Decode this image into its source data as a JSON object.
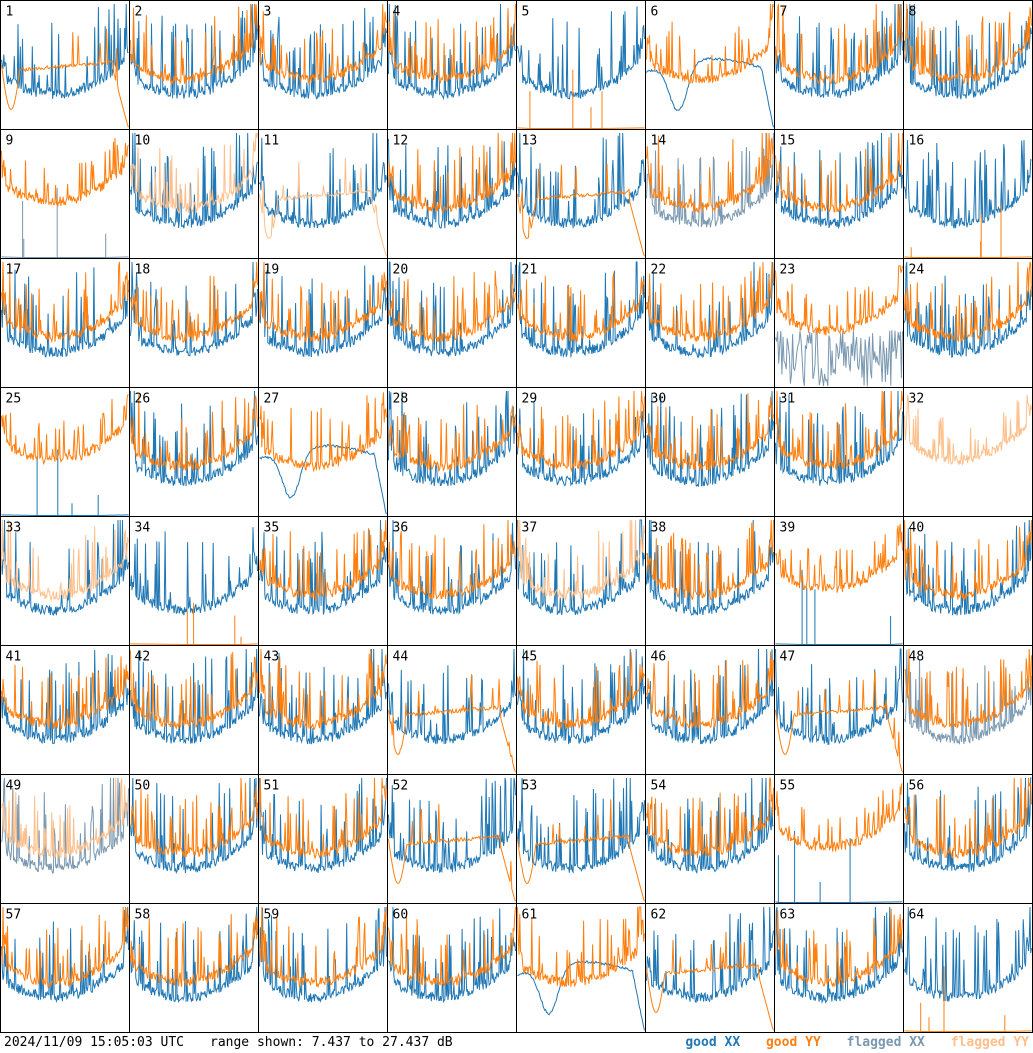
{
  "chart_data": {
    "type": "line",
    "title": "",
    "xlabel": "",
    "ylabel": "",
    "panel_count": 64,
    "columns": 8,
    "rows": 8,
    "panel_labels": [
      "1",
      "2",
      "3",
      "4",
      "5",
      "6",
      "7",
      "8",
      "9",
      "10",
      "11",
      "12",
      "13",
      "14",
      "15",
      "16",
      "17",
      "18",
      "19",
      "20",
      "21",
      "22",
      "23",
      "24",
      "25",
      "26",
      "27",
      "28",
      "29",
      "30",
      "31",
      "32",
      "33",
      "34",
      "35",
      "36",
      "37",
      "38",
      "39",
      "40",
      "41",
      "42",
      "43",
      "44",
      "45",
      "46",
      "47",
      "48",
      "49",
      "50",
      "51",
      "52",
      "53",
      "54",
      "55",
      "56",
      "57",
      "58",
      "59",
      "60",
      "61",
      "62",
      "63",
      "64"
    ],
    "ylim": [
      7.437,
      27.437
    ],
    "ylim_units": "dB",
    "series_styles": {
      "good_xx": "#1f77b4",
      "good_yy": "#ff7f0e",
      "flagged_xx": "#7a98b0",
      "flagged_yy": "#ffbf8a"
    },
    "panels": {
      "1": {
        "xx": "a",
        "yy": "drop"
      },
      "2": {
        "xx": "a",
        "yy": "a"
      },
      "3": {
        "xx": "a",
        "yy": "a"
      },
      "4": {
        "xx": "a",
        "yy": "a"
      },
      "5": {
        "xx": "a",
        "yy": "dead"
      },
      "6": {
        "xx": "dip",
        "yy": "a"
      },
      "7": {
        "xx": "a",
        "yy": "a"
      },
      "8": {
        "xx": "a",
        "yy": "a"
      },
      "9": {
        "xx": "dead",
        "yy": "flat",
        "xx_flag": true
      },
      "10": {
        "xx": "a",
        "yy": "a",
        "yy_flag": true
      },
      "11": {
        "xx": "a",
        "yy": "drop",
        "yy_flag": true
      },
      "12": {
        "xx": "a",
        "yy": "a"
      },
      "13": {
        "xx": "a",
        "yy": "drop"
      },
      "14": {
        "xx": "a",
        "yy": "a",
        "xx_flag": true
      },
      "15": {
        "xx": "a",
        "yy": "a"
      },
      "16": {
        "xx": "a",
        "yy": "dead"
      },
      "17": {
        "xx": "a",
        "yy": "a"
      },
      "18": {
        "xx": "a",
        "yy": "a"
      },
      "19": {
        "xx": "a",
        "yy": "a"
      },
      "20": {
        "xx": "a",
        "yy": "a"
      },
      "21": {
        "xx": "a",
        "yy": "a"
      },
      "22": {
        "xx": "a",
        "yy": "a"
      },
      "23": {
        "xx": "noise",
        "yy": "flat",
        "xx_flag": true
      },
      "24": {
        "xx": "a",
        "yy": "a"
      },
      "25": {
        "xx": "dead",
        "yy": "flat"
      },
      "26": {
        "xx": "a",
        "yy": "a"
      },
      "27": {
        "xx": "dip",
        "yy": "a"
      },
      "28": {
        "xx": "a",
        "yy": "a"
      },
      "29": {
        "xx": "a",
        "yy": "a"
      },
      "30": {
        "xx": "a",
        "yy": "a"
      },
      "31": {
        "xx": "a",
        "yy": "a"
      },
      "32": {
        "xx": "none",
        "yy": "flat",
        "yy_flag": true
      },
      "33": {
        "xx": "a",
        "yy": "a",
        "yy_flag": true
      },
      "34": {
        "xx": "a",
        "yy": "dead"
      },
      "35": {
        "xx": "a",
        "yy": "a"
      },
      "36": {
        "xx": "a",
        "yy": "a"
      },
      "37": {
        "xx": "a",
        "yy": "a",
        "yy_flag": true
      },
      "38": {
        "xx": "a",
        "yy": "a"
      },
      "39": {
        "xx": "dead",
        "yy": "flat"
      },
      "40": {
        "xx": "a",
        "yy": "a"
      },
      "41": {
        "xx": "a",
        "yy": "a"
      },
      "42": {
        "xx": "a",
        "yy": "a"
      },
      "43": {
        "xx": "a",
        "yy": "a"
      },
      "44": {
        "xx": "a",
        "yy": "drop"
      },
      "45": {
        "xx": "a",
        "yy": "a"
      },
      "46": {
        "xx": "a",
        "yy": "a"
      },
      "47": {
        "xx": "a",
        "yy": "drop"
      },
      "48": {
        "xx": "a",
        "yy": "a",
        "xx_flag": true
      },
      "49": {
        "xx": "a",
        "yy": "a",
        "xx_flag": true,
        "yy_flag": true
      },
      "50": {
        "xx": "a",
        "yy": "a"
      },
      "51": {
        "xx": "a",
        "yy": "a"
      },
      "52": {
        "xx": "a",
        "yy": "drop"
      },
      "53": {
        "xx": "a",
        "yy": "drop"
      },
      "54": {
        "xx": "a",
        "yy": "a"
      },
      "55": {
        "xx": "dead",
        "yy": "flat"
      },
      "56": {
        "xx": "a",
        "yy": "a"
      },
      "57": {
        "xx": "a",
        "yy": "a"
      },
      "58": {
        "xx": "a",
        "yy": "a"
      },
      "59": {
        "xx": "a",
        "yy": "a"
      },
      "60": {
        "xx": "a",
        "yy": "a"
      },
      "61": {
        "xx": "dip",
        "yy": "a"
      },
      "62": {
        "xx": "a",
        "yy": "drop"
      },
      "63": {
        "xx": "a",
        "yy": "a"
      },
      "64": {
        "xx": "a",
        "yy": "dead"
      }
    }
  },
  "footer": {
    "timestamp": "2024/11/09 15:05:03 UTC",
    "range_text": "range shown: 7.437 to 27.437 dB"
  },
  "legend": {
    "good_xx": "good XX",
    "good_yy": "good YY",
    "flagged_xx": "flagged XX",
    "flagged_yy": "flagged YY"
  }
}
